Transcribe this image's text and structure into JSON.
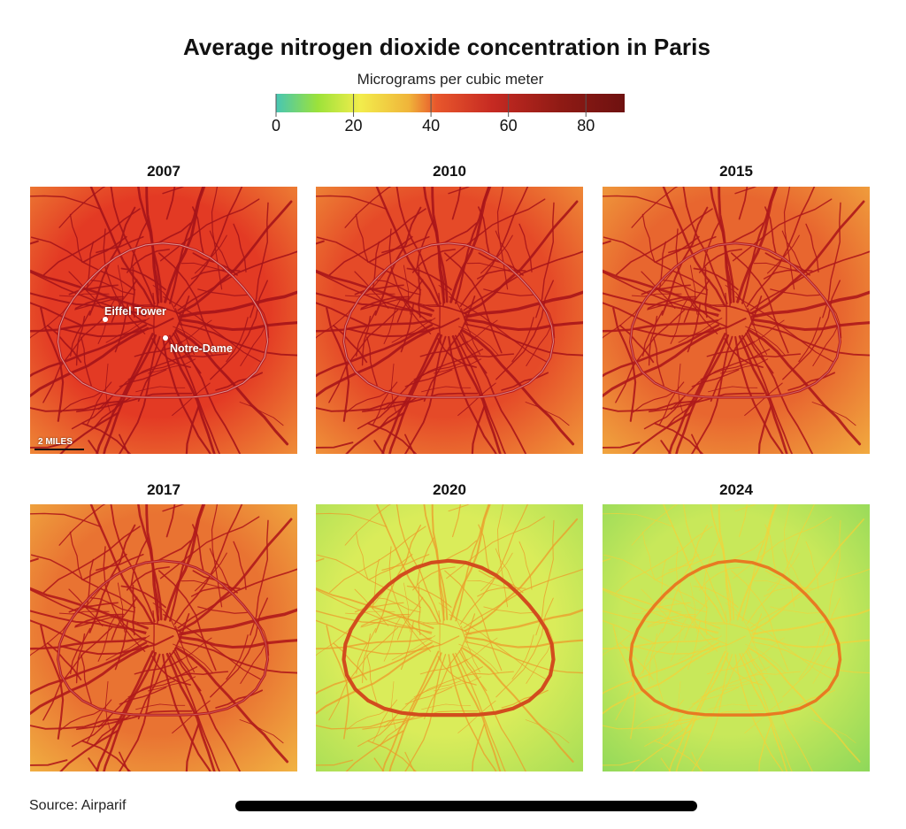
{
  "title": "Average nitrogen dioxide concentration in Paris",
  "legend": {
    "label": "Micrograms per cubic meter",
    "ticks": [
      "0",
      "20",
      "40",
      "60",
      "80"
    ],
    "tick_values": [
      0,
      20,
      40,
      60,
      80
    ],
    "range": [
      0,
      90
    ],
    "colors": [
      "#47c6b4",
      "#9ce23a",
      "#f2ed4c",
      "#f0b53a",
      "#e8572c",
      "#c62a22",
      "#8e1a14",
      "#6e1110"
    ]
  },
  "panels": [
    {
      "year": "2007",
      "level": 0.0
    },
    {
      "year": "2010",
      "level": 0.12
    },
    {
      "year": "2015",
      "level": 0.32
    },
    {
      "year": "2017",
      "level": 0.42
    },
    {
      "year": "2020",
      "level": 0.82
    },
    {
      "year": "2024",
      "level": 1.0
    }
  ],
  "labels": {
    "eiffel": "Eiffel Tower",
    "notre_dame": "Notre-Dame",
    "scale": "2 MILES"
  },
  "source": "Source: Airparif"
}
